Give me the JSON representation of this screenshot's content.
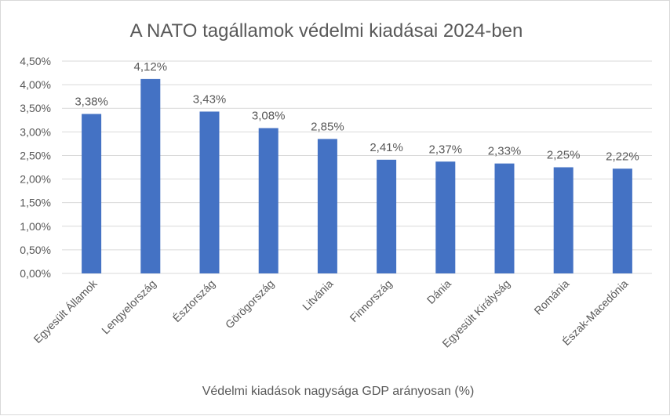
{
  "chart_data": {
    "type": "bar",
    "title": "A NATO tagállamok védelmi kiadásai 2024-ben",
    "xlabel": "Védelmi kiadások nagysága GDP arányosan (%)",
    "ylabel": "",
    "categories": [
      "Egyesült Államok",
      "Lengyelország",
      "Észtország",
      "Görögország",
      "Litvánia",
      "Finnország",
      "Dánia",
      "Egyesült Királyság",
      "Románia",
      "Észak-Macedónia"
    ],
    "values": [
      3.38,
      4.12,
      3.43,
      3.08,
      2.85,
      2.41,
      2.37,
      2.33,
      2.25,
      2.22
    ],
    "data_labels": [
      "3,38%",
      "4,12%",
      "3,43%",
      "3,08%",
      "2,85%",
      "2,41%",
      "2,37%",
      "2,33%",
      "2,25%",
      "2,22%"
    ],
    "ylim": [
      0,
      4.5
    ],
    "yticks": [
      0,
      0.5,
      1,
      1.5,
      2,
      2.5,
      3,
      3.5,
      4,
      4.5
    ],
    "ytick_labels": [
      "0,00%",
      "0,50%",
      "1,00%",
      "1,50%",
      "2,00%",
      "2,50%",
      "3,00%",
      "3,50%",
      "4,00%",
      "4,50%"
    ],
    "grid": true,
    "legend": "none",
    "bar_color": "#4472C4"
  }
}
